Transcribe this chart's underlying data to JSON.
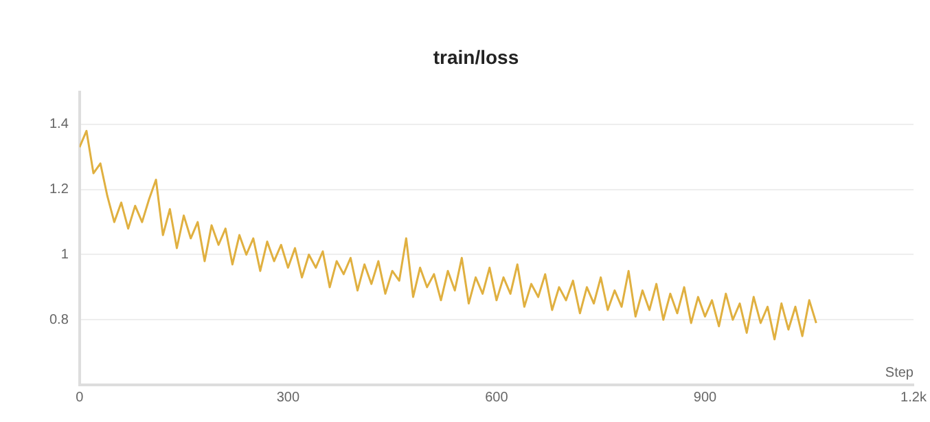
{
  "chart_data": {
    "type": "line",
    "title": "train/loss",
    "xlabel": "Step",
    "x": [
      0,
      10,
      20,
      30,
      40,
      50,
      60,
      70,
      80,
      90,
      100,
      110,
      120,
      130,
      140,
      150,
      160,
      170,
      180,
      190,
      200,
      210,
      220,
      230,
      240,
      250,
      260,
      270,
      280,
      290,
      300,
      310,
      320,
      330,
      340,
      350,
      360,
      370,
      380,
      390,
      400,
      410,
      420,
      430,
      440,
      450,
      460,
      470,
      480,
      490,
      500,
      510,
      520,
      530,
      540,
      550,
      560,
      570,
      580,
      590,
      600,
      610,
      620,
      630,
      640,
      650,
      660,
      670,
      680,
      690,
      700,
      710,
      720,
      730,
      740,
      750,
      760,
      770,
      780,
      790,
      800,
      810,
      820,
      830,
      840,
      850,
      860,
      870,
      880,
      890,
      900,
      910,
      920,
      930,
      940,
      950,
      960,
      970,
      980,
      990,
      1000,
      1010,
      1020,
      1030,
      1040,
      1050,
      1060
    ],
    "series": [
      {
        "color": "#e0b040",
        "values": [
          1.33,
          1.38,
          1.25,
          1.28,
          1.18,
          1.1,
          1.16,
          1.08,
          1.15,
          1.1,
          1.17,
          1.23,
          1.06,
          1.14,
          1.02,
          1.12,
          1.05,
          1.1,
          0.98,
          1.09,
          1.03,
          1.08,
          0.97,
          1.06,
          1.0,
          1.05,
          0.95,
          1.04,
          0.98,
          1.03,
          0.96,
          1.02,
          0.93,
          1.0,
          0.96,
          1.01,
          0.9,
          0.98,
          0.94,
          0.99,
          0.89,
          0.97,
          0.91,
          0.98,
          0.88,
          0.95,
          0.92,
          1.05,
          0.87,
          0.96,
          0.9,
          0.94,
          0.86,
          0.95,
          0.89,
          0.99,
          0.85,
          0.93,
          0.88,
          0.96,
          0.86,
          0.93,
          0.88,
          0.97,
          0.84,
          0.91,
          0.87,
          0.94,
          0.83,
          0.9,
          0.86,
          0.92,
          0.82,
          0.9,
          0.85,
          0.93,
          0.83,
          0.89,
          0.84,
          0.95,
          0.81,
          0.89,
          0.83,
          0.91,
          0.8,
          0.88,
          0.82,
          0.9,
          0.79,
          0.87,
          0.81,
          0.86,
          0.78,
          0.88,
          0.8,
          0.85,
          0.76,
          0.87,
          0.79,
          0.84,
          0.74,
          0.85,
          0.77,
          0.84,
          0.75,
          0.86,
          0.79
        ]
      }
    ],
    "xlim": [
      0,
      1200
    ],
    "xticks": [
      0,
      300,
      600,
      900,
      {
        "value": 1200,
        "label": "1.2k"
      }
    ],
    "ylim": [
      0.6,
      1.5
    ],
    "yticks": [
      0.8,
      1,
      1.2,
      1.4
    ],
    "grid": "y",
    "legend": false,
    "marker": "none",
    "line_style": "solid"
  }
}
